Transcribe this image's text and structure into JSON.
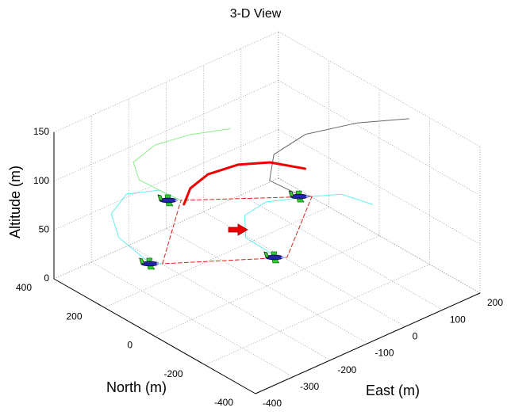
{
  "chart_data": {
    "type": "line3d",
    "title": "3-D View",
    "xlabel": "East (m)",
    "ylabel": "North (m)",
    "zlabel": "Altitude (m)",
    "xlim": [
      -400,
      200
    ],
    "ylim": [
      -400,
      400
    ],
    "zlim": [
      0,
      150
    ],
    "xticks": [
      -400,
      -300,
      -200,
      -100,
      0,
      100,
      200
    ],
    "yticks": [
      -400,
      -200,
      0,
      200,
      400
    ],
    "zticks": [
      0,
      50,
      100,
      150
    ],
    "grid": true,
    "series": [
      {
        "color": "#66eeee",
        "width": 1,
        "x": [
          -275,
          -267,
          -246,
          -259,
          -223,
          -126,
          -81
        ],
        "y": [
          155,
          213,
          371,
          382,
          375,
          391,
          370
        ],
        "z": [
          30,
          20,
          20,
          45,
          60,
          45,
          30
        ]
      },
      {
        "color": "#66eeee",
        "width": 1,
        "x": [
          -72,
          -86,
          -82,
          -25,
          42,
          125,
          175,
          195
        ],
        "y": [
          -38,
          -22,
          111,
          200,
          215,
          156,
          114,
          19
        ],
        "z": [
          30,
          30,
          30,
          30,
          30,
          30,
          30,
          30
        ]
      },
      {
        "color": "#88ee88",
        "width": 1,
        "x": [
          -81,
          -111,
          -192,
          -219,
          -193,
          -138,
          -76
        ],
        "y": [
          370,
          381,
          371,
          354,
          307,
          248,
          182
        ],
        "z": [
          30,
          40,
          70,
          95,
          115,
          125,
          130
        ]
      },
      {
        "color": "#666666",
        "width": 1,
        "x": [
          125,
          110,
          65,
          63,
          99,
          168,
          192
        ],
        "y": [
          156,
          191,
          235,
          215,
          143,
          40,
          -129
        ],
        "z": [
          30,
          30,
          45,
          75,
          100,
          115,
          140
        ]
      },
      {
        "color": "#dd2222",
        "width": 1,
        "dashed": true,
        "x": [
          -275,
          -81,
          125,
          -72,
          -275
        ],
        "y": [
          155,
          370,
          156,
          -38,
          155
        ],
        "z": [
          30,
          30,
          30,
          30,
          30
        ]
      },
      {
        "color": "#ee0000",
        "width": 3,
        "x": [
          -87,
          -74,
          -49,
          21,
          75,
          111
        ],
        "y": [
          349,
          343,
          310,
          295,
          248,
          162
        ],
        "z": [
          30,
          45,
          60,
          60,
          60,
          60
        ]
      }
    ],
    "aircraft": {
      "x": [
        -275,
        -81,
        125,
        -72
      ],
      "y": [
        155,
        370,
        156,
        -38
      ],
      "z": [
        30,
        30,
        30,
        30
      ]
    }
  }
}
